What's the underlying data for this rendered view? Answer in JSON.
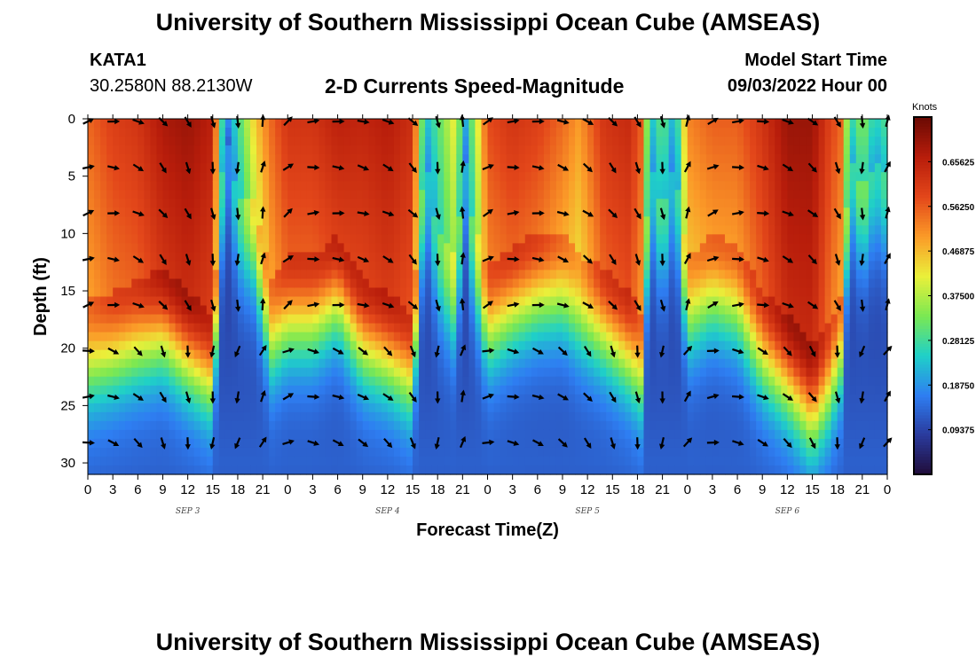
{
  "title": "University of Southern Mississippi Ocean Cube (AMSEAS)",
  "station": {
    "id": "KATA1",
    "coords": "30.2580N  88.2130W"
  },
  "subtitle": "2-D Currents Speed-Magnitude",
  "model_start": {
    "label": "Model Start Time",
    "value": "09/03/2022 Hour 00"
  },
  "footer_title": "University of Southern Mississippi Ocean Cube (AMSEAS)",
  "chart_data": {
    "type": "heatmap",
    "title": "2-D Currents Speed-Magnitude",
    "xlabel": "Forecast Time(Z)",
    "ylabel": "Depth (ft)",
    "x_range_hours": [
      0,
      96
    ],
    "y_range_ft": [
      0,
      31
    ],
    "x_tick_labels": [
      "0",
      "3",
      "6",
      "9",
      "12",
      "15",
      "18",
      "21",
      "0",
      "3",
      "6",
      "9",
      "12",
      "15",
      "18",
      "21",
      "0",
      "3",
      "6",
      "9",
      "12",
      "15",
      "18",
      "21",
      "0",
      "3",
      "6",
      "9",
      "12",
      "15",
      "18",
      "21",
      "0"
    ],
    "day_labels": [
      {
        "label": "SEP 3",
        "hour": 12
      },
      {
        "label": "SEP 4",
        "hour": 36
      },
      {
        "label": "SEP 5",
        "hour": 60
      },
      {
        "label": "SEP 6",
        "hour": 84
      }
    ],
    "y_ticks": [
      0,
      5,
      10,
      15,
      20,
      25,
      30
    ],
    "colorbar": {
      "units": "Knots",
      "range": [
        0,
        0.75
      ],
      "tick_labels": [
        "0.09375",
        "0.18750",
        "0.28125",
        "0.37500",
        "0.46875",
        "0.56250",
        "0.65625"
      ],
      "colors": [
        "#200c38",
        "#2a3a9c",
        "#2e7ef2",
        "#1fd0c8",
        "#7be852",
        "#eaf03a",
        "#fb9a28",
        "#e3471a",
        "#b81d0b",
        "#6b0a04"
      ]
    },
    "speed_max_knots": 0.72,
    "speed_floor_knots": 0.08,
    "speed_profile_by_hour": [
      [
        0,
        0.55,
        16
      ],
      [
        3,
        0.6,
        15
      ],
      [
        6,
        0.62,
        14
      ],
      [
        9,
        0.68,
        13
      ],
      [
        12,
        0.7,
        15
      ],
      [
        15,
        0.66,
        17
      ],
      [
        16.5,
        0.15,
        1
      ],
      [
        18,
        0.28,
        7
      ],
      [
        20,
        0.45,
        7
      ],
      [
        22,
        0.55,
        14
      ],
      [
        24,
        0.62,
        12
      ],
      [
        27,
        0.62,
        12
      ],
      [
        30,
        0.66,
        10
      ],
      [
        33,
        0.65,
        14
      ],
      [
        36,
        0.67,
        15
      ],
      [
        39,
        0.63,
        17
      ],
      [
        40.5,
        0.22,
        3
      ],
      [
        42,
        0.3,
        10
      ],
      [
        44,
        0.42,
        12
      ],
      [
        45.5,
        0.2,
        3
      ],
      [
        46,
        0.3,
        8
      ],
      [
        48,
        0.58,
        13
      ],
      [
        51,
        0.62,
        11
      ],
      [
        54,
        0.6,
        10
      ],
      [
        57,
        0.55,
        10
      ],
      [
        59,
        0.5,
        12
      ],
      [
        62,
        0.62,
        13
      ],
      [
        65,
        0.64,
        15
      ],
      [
        66.5,
        0.56,
        17
      ],
      [
        67.5,
        0.22,
        4
      ],
      [
        69,
        0.32,
        8
      ],
      [
        70.5,
        0.2,
        4
      ],
      [
        72,
        0.52,
        12
      ],
      [
        75,
        0.56,
        10
      ],
      [
        78,
        0.56,
        11
      ],
      [
        81,
        0.62,
        15
      ],
      [
        84,
        0.7,
        17
      ],
      [
        87,
        0.7,
        20
      ],
      [
        89,
        0.6,
        18
      ],
      [
        90.5,
        0.55,
        15
      ],
      [
        91.5,
        0.25,
        3
      ],
      [
        93,
        0.35,
        6
      ],
      [
        94.5,
        0.25,
        4
      ],
      [
        96,
        0.3,
        5
      ]
    ],
    "arrow_hours": [
      0,
      3,
      6,
      9,
      12,
      15,
      18,
      21,
      24,
      27,
      30,
      33,
      36,
      39,
      42,
      45,
      48,
      51,
      54,
      57,
      60,
      63,
      66,
      69,
      72,
      75,
      78,
      81,
      84,
      87,
      90,
      93,
      96
    ],
    "arrow_depths_ft": [
      0,
      4,
      8,
      12,
      16,
      20,
      24,
      28
    ],
    "arrow_direction_deg_by_hour": [
      [
        0,
        70
      ],
      [
        3,
        95
      ],
      [
        6,
        115
      ],
      [
        9,
        140
      ],
      [
        12,
        155
      ],
      [
        15,
        170
      ],
      [
        18,
        180
      ],
      [
        21,
        10
      ],
      [
        24,
        50
      ],
      [
        27,
        85
      ],
      [
        30,
        95
      ],
      [
        33,
        105
      ],
      [
        36,
        115
      ],
      [
        39,
        135
      ],
      [
        42,
        170
      ],
      [
        45,
        0
      ],
      [
        48,
        60
      ],
      [
        51,
        85
      ],
      [
        54,
        95
      ],
      [
        57,
        110
      ],
      [
        60,
        125
      ],
      [
        63,
        140
      ],
      [
        66,
        155
      ],
      [
        69,
        170
      ],
      [
        72,
        20
      ],
      [
        75,
        65
      ],
      [
        78,
        85
      ],
      [
        81,
        100
      ],
      [
        84,
        115
      ],
      [
        87,
        130
      ],
      [
        90,
        155
      ],
      [
        93,
        180
      ],
      [
        96,
        20
      ]
    ]
  }
}
